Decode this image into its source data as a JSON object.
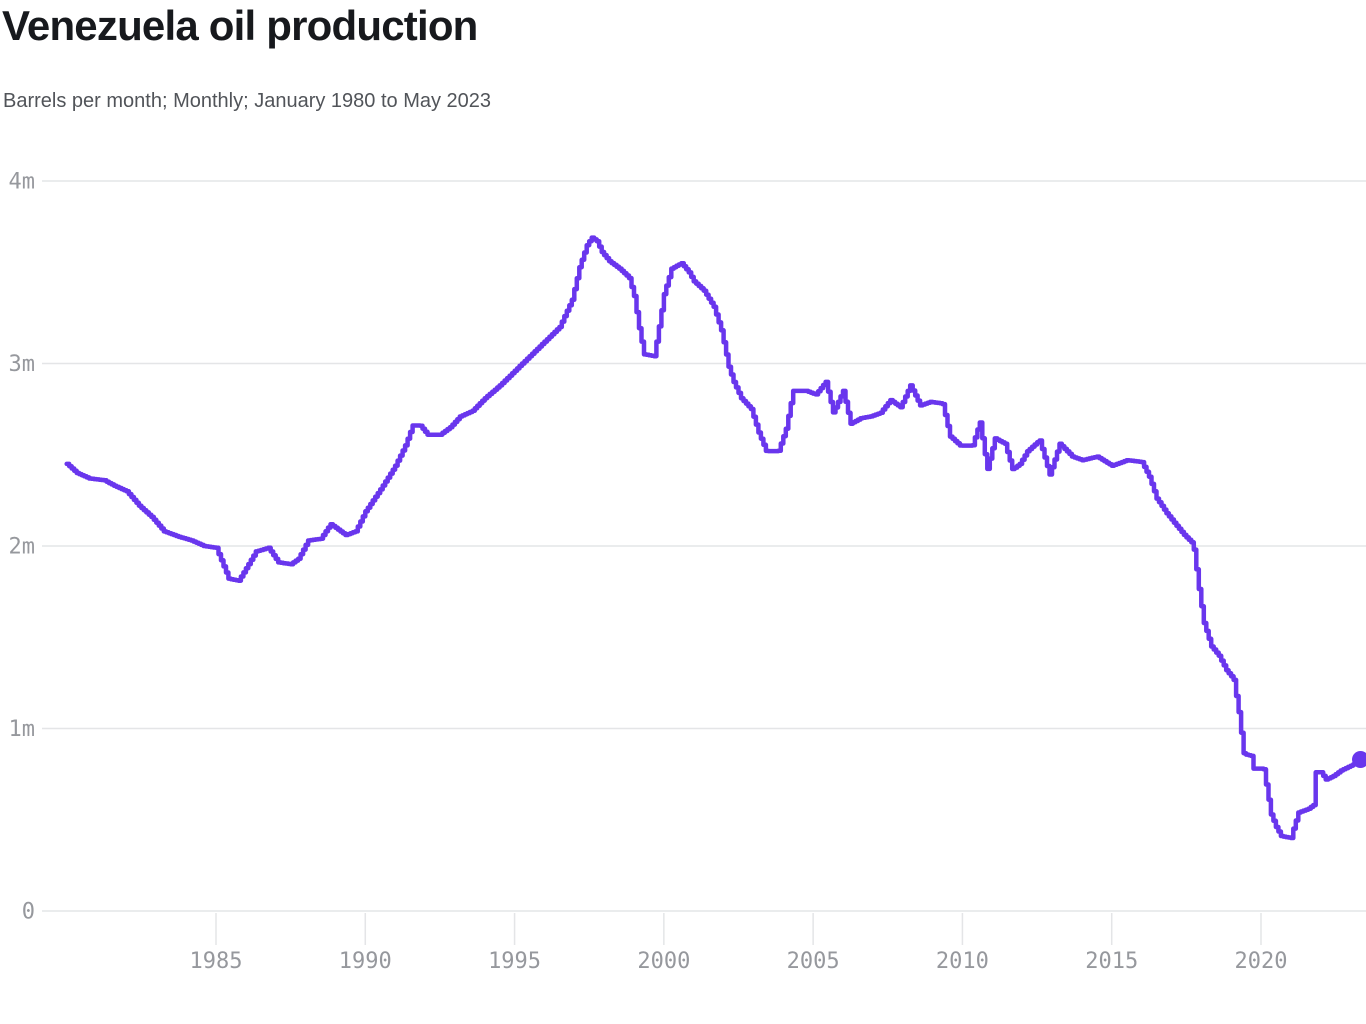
{
  "header": {
    "title": "Venezuela oil production",
    "subtitle": "Barrels per month; Monthly; January 1980 to May 2023"
  },
  "chart_data": {
    "type": "line",
    "title": "Venezuela oil production",
    "subtitle": "Barrels per month; Monthly; January 1980 to May 2023",
    "unit": "barrels per month, millions",
    "series_name": "Venezuela oil production",
    "interpolation": "step-after-monthly",
    "grid": true,
    "legend_position": "none",
    "x_domain": [
      1980,
      2023.417
    ],
    "y_domain": [
      0,
      4
    ],
    "line_color": "#6936ed",
    "grid_color": "#e4e5e7",
    "tick_label_color": "#96989d",
    "y_ticks": [
      {
        "value": 0,
        "label": "0"
      },
      {
        "value": 1,
        "label": "1m"
      },
      {
        "value": 2,
        "label": "2m"
      },
      {
        "value": 3,
        "label": "3m"
      },
      {
        "value": 4,
        "label": "4m"
      }
    ],
    "x_ticks": [
      {
        "value": 1985,
        "label": "1985"
      },
      {
        "value": 1990,
        "label": "1990"
      },
      {
        "value": 1995,
        "label": "1995"
      },
      {
        "value": 2000,
        "label": "2000"
      },
      {
        "value": 2005,
        "label": "2005"
      },
      {
        "value": 2010,
        "label": "2010"
      },
      {
        "value": 2015,
        "label": "2015"
      },
      {
        "value": 2020,
        "label": "2020"
      }
    ],
    "points": [
      [
        1980.0,
        2.45
      ],
      [
        1980.33,
        2.4
      ],
      [
        1980.75,
        2.37
      ],
      [
        1981.25,
        2.36
      ],
      [
        1981.58,
        2.33
      ],
      [
        1982.0,
        2.3
      ],
      [
        1982.42,
        2.22
      ],
      [
        1982.83,
        2.16
      ],
      [
        1983.25,
        2.08
      ],
      [
        1983.75,
        2.05
      ],
      [
        1984.17,
        2.03
      ],
      [
        1984.58,
        2.0
      ],
      [
        1985.0,
        1.99
      ],
      [
        1985.17,
        1.92
      ],
      [
        1985.42,
        1.82
      ],
      [
        1985.75,
        1.81
      ],
      [
        1986.08,
        1.9
      ],
      [
        1986.33,
        1.97
      ],
      [
        1986.75,
        1.99
      ],
      [
        1987.08,
        1.91
      ],
      [
        1987.5,
        1.9
      ],
      [
        1987.75,
        1.93
      ],
      [
        1988.08,
        2.03
      ],
      [
        1988.5,
        2.04
      ],
      [
        1988.83,
        2.12
      ],
      [
        1989.08,
        2.09
      ],
      [
        1989.33,
        2.06
      ],
      [
        1989.67,
        2.08
      ],
      [
        1990.0,
        2.19
      ],
      [
        1990.5,
        2.31
      ],
      [
        1991.0,
        2.44
      ],
      [
        1991.33,
        2.55
      ],
      [
        1991.58,
        2.66
      ],
      [
        1991.83,
        2.66
      ],
      [
        1992.08,
        2.61
      ],
      [
        1992.5,
        2.61
      ],
      [
        1992.83,
        2.65
      ],
      [
        1993.17,
        2.71
      ],
      [
        1993.58,
        2.74
      ],
      [
        1994.0,
        2.81
      ],
      [
        1994.5,
        2.88
      ],
      [
        1995.0,
        2.96
      ],
      [
        1995.5,
        3.04
      ],
      [
        1996.0,
        3.12
      ],
      [
        1996.5,
        3.2
      ],
      [
        1996.92,
        3.35
      ],
      [
        1997.17,
        3.53
      ],
      [
        1997.42,
        3.65
      ],
      [
        1997.58,
        3.69
      ],
      [
        1997.75,
        3.67
      ],
      [
        1997.92,
        3.61
      ],
      [
        1998.17,
        3.56
      ],
      [
        1998.5,
        3.52
      ],
      [
        1998.83,
        3.47
      ],
      [
        1999.0,
        3.37
      ],
      [
        1999.17,
        3.19
      ],
      [
        1999.33,
        3.05
      ],
      [
        1999.67,
        3.04
      ],
      [
        1999.83,
        3.2
      ],
      [
        2000.0,
        3.38
      ],
      [
        2000.25,
        3.52
      ],
      [
        2000.58,
        3.55
      ],
      [
        2000.83,
        3.5
      ],
      [
        2001.0,
        3.45
      ],
      [
        2001.33,
        3.4
      ],
      [
        2001.67,
        3.31
      ],
      [
        2001.92,
        3.18
      ],
      [
        2002.17,
        2.98
      ],
      [
        2002.33,
        2.9
      ],
      [
        2002.58,
        2.81
      ],
      [
        2002.92,
        2.75
      ],
      [
        2003.17,
        2.62
      ],
      [
        2003.42,
        2.52
      ],
      [
        2003.83,
        2.52
      ],
      [
        2004.08,
        2.64
      ],
      [
        2004.33,
        2.85
      ],
      [
        2004.75,
        2.85
      ],
      [
        2005.08,
        2.83
      ],
      [
        2005.42,
        2.9
      ],
      [
        2005.67,
        2.73
      ],
      [
        2006.0,
        2.85
      ],
      [
        2006.25,
        2.67
      ],
      [
        2006.58,
        2.7
      ],
      [
        2006.92,
        2.71
      ],
      [
        2007.25,
        2.73
      ],
      [
        2007.58,
        2.8
      ],
      [
        2007.92,
        2.76
      ],
      [
        2008.25,
        2.88
      ],
      [
        2008.58,
        2.77
      ],
      [
        2008.92,
        2.79
      ],
      [
        2009.33,
        2.78
      ],
      [
        2009.58,
        2.6
      ],
      [
        2009.92,
        2.55
      ],
      [
        2010.33,
        2.55
      ],
      [
        2010.58,
        2.68
      ],
      [
        2010.83,
        2.42
      ],
      [
        2011.08,
        2.59
      ],
      [
        2011.42,
        2.56
      ],
      [
        2011.67,
        2.42
      ],
      [
        2011.92,
        2.45
      ],
      [
        2012.17,
        2.52
      ],
      [
        2012.58,
        2.58
      ],
      [
        2012.92,
        2.39
      ],
      [
        2013.25,
        2.56
      ],
      [
        2013.67,
        2.49
      ],
      [
        2014.0,
        2.47
      ],
      [
        2014.5,
        2.49
      ],
      [
        2015.0,
        2.44
      ],
      [
        2015.5,
        2.47
      ],
      [
        2016.0,
        2.46
      ],
      [
        2016.25,
        2.38
      ],
      [
        2016.5,
        2.26
      ],
      [
        2016.83,
        2.18
      ],
      [
        2017.17,
        2.11
      ],
      [
        2017.42,
        2.06
      ],
      [
        2017.67,
        2.02
      ],
      [
        2017.75,
        1.98
      ],
      [
        2017.92,
        1.76
      ],
      [
        2018.08,
        1.58
      ],
      [
        2018.33,
        1.45
      ],
      [
        2018.58,
        1.4
      ],
      [
        2018.83,
        1.32
      ],
      [
        2019.08,
        1.27
      ],
      [
        2019.25,
        1.09
      ],
      [
        2019.42,
        0.86
      ],
      [
        2019.67,
        0.85
      ],
      [
        2019.75,
        0.78
      ],
      [
        2020.08,
        0.78
      ],
      [
        2020.33,
        0.53
      ],
      [
        2020.5,
        0.46
      ],
      [
        2020.67,
        0.41
      ],
      [
        2021.0,
        0.4
      ],
      [
        2021.08,
        0.45
      ],
      [
        2021.25,
        0.54
      ],
      [
        2021.58,
        0.56
      ],
      [
        2021.75,
        0.58
      ],
      [
        2021.83,
        0.76
      ],
      [
        2022.0,
        0.76
      ],
      [
        2022.17,
        0.72
      ],
      [
        2022.42,
        0.74
      ],
      [
        2022.67,
        0.77
      ],
      [
        2022.92,
        0.79
      ],
      [
        2023.17,
        0.81
      ],
      [
        2023.33,
        0.83
      ]
    ],
    "end_dot": {
      "x": 2023.333,
      "y": 0.83
    }
  }
}
